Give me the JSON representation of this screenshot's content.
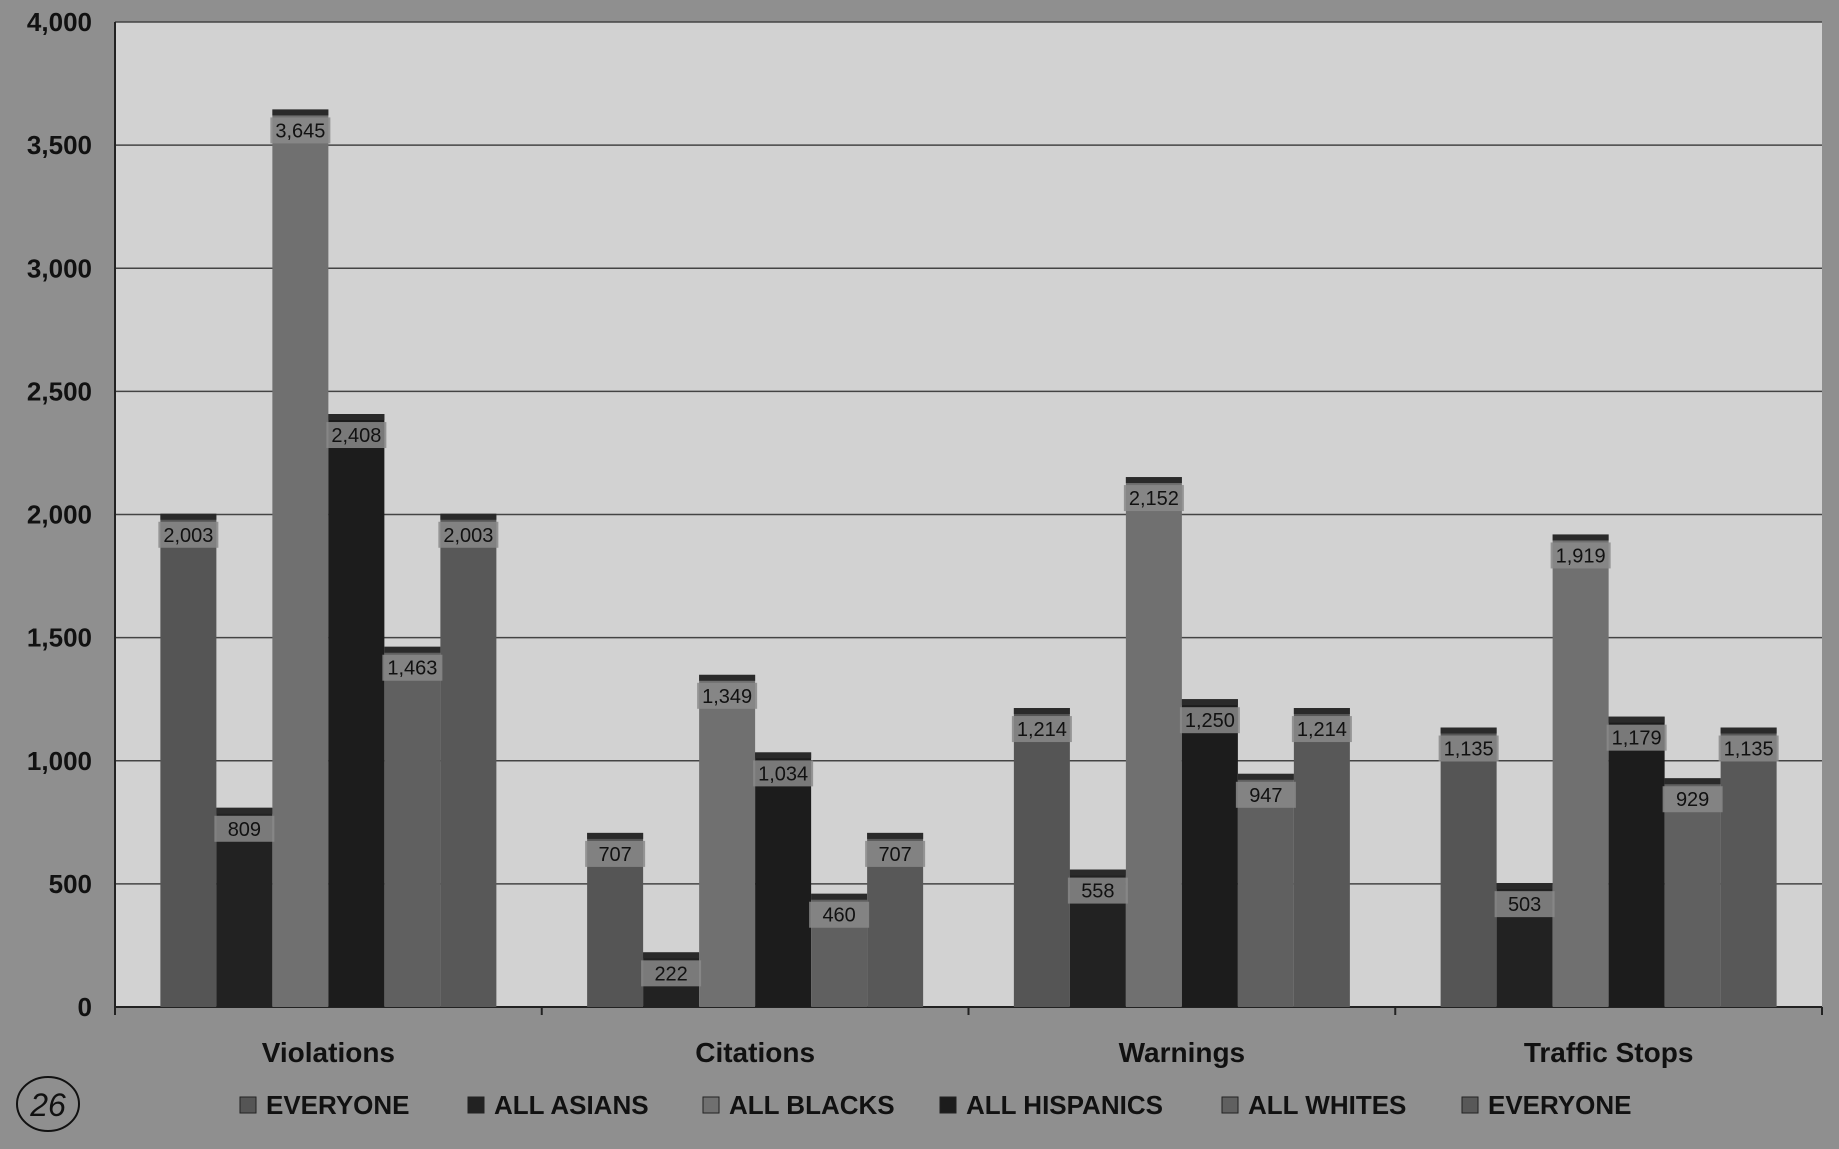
{
  "chart_data": {
    "type": "bar",
    "categories": [
      "Violations",
      "Citations",
      "Warnings",
      "Traffic Stops"
    ],
    "ylim": [
      0,
      4000
    ],
    "yticks": [
      0,
      500,
      1000,
      1500,
      2000,
      2500,
      3000,
      3500,
      4000
    ],
    "ytick_labels": [
      "0",
      "500",
      "1,000",
      "1,500",
      "2,000",
      "2,500",
      "3,000",
      "3,500",
      "4,000"
    ],
    "grid": true,
    "legend_position": "bottom",
    "series": [
      {
        "name": "EVERYONE",
        "color": "#555555",
        "values": [
          2003,
          707,
          1214,
          1135
        ],
        "labels": [
          "2,003",
          "707",
          "1,214",
          "1,135"
        ]
      },
      {
        "name": "ALL ASIANS",
        "color": "#222222",
        "values": [
          809,
          222,
          558,
          503
        ],
        "labels": [
          "809",
          "222",
          "558",
          "503"
        ]
      },
      {
        "name": "ALL BLACKS",
        "color": "#707070",
        "values": [
          3645,
          1349,
          2152,
          1919
        ],
        "labels": [
          "3,645",
          "1,349",
          "2,152",
          "1,919"
        ]
      },
      {
        "name": "ALL HISPANICS",
        "color": "#1c1c1c",
        "values": [
          2408,
          1034,
          1250,
          1179
        ],
        "labels": [
          "2,408",
          "1,034",
          "1,250",
          "1,179"
        ]
      },
      {
        "name": "ALL WHITES",
        "color": "#606060",
        "values": [
          1463,
          460,
          947,
          929
        ],
        "labels": [
          "1,463",
          "460",
          "947",
          "929"
        ]
      },
      {
        "name": "EVERYONE",
        "color": "#585858",
        "values": [
          2003,
          707,
          1214,
          1135
        ],
        "labels": [
          "2,003",
          "707",
          "1,214",
          "1,135"
        ]
      }
    ]
  },
  "page_mark": {
    "text": "26"
  }
}
